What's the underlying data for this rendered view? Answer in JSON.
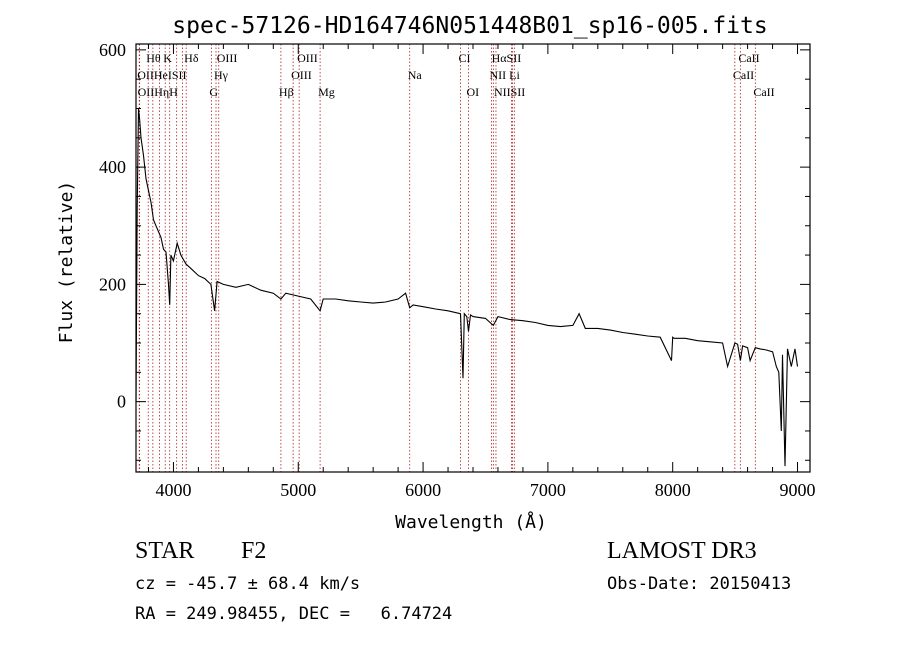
{
  "chart_data": {
    "type": "line",
    "title": "spec-57126-HD164746N051448B01_sp16-005.fits",
    "xlabel": "Wavelength (Å)",
    "ylabel": "Flux (relative)",
    "xlim": [
      3700,
      9100
    ],
    "ylim": [
      -120,
      610
    ],
    "x_ticks": [
      4000,
      5000,
      6000,
      7000,
      8000,
      9000
    ],
    "y_ticks": [
      0,
      200,
      400,
      600
    ],
    "series": [
      {
        "name": "flux",
        "x": [
          3700,
          3710,
          3720,
          3730,
          3740,
          3760,
          3780,
          3800,
          3820,
          3840,
          3860,
          3880,
          3900,
          3920,
          3940,
          3960,
          3970,
          3980,
          4000,
          4030,
          4060,
          4100,
          4150,
          4200,
          4250,
          4300,
          4330,
          4350,
          4400,
          4500,
          4600,
          4700,
          4800,
          4861,
          4900,
          5000,
          5100,
          5175,
          5200,
          5300,
          5400,
          5500,
          5600,
          5700,
          5800,
          5860,
          5893,
          5920,
          6000,
          6100,
          6200,
          6300,
          6320,
          6330,
          6350,
          6364,
          6380,
          6400,
          6500,
          6563,
          6600,
          6700,
          6800,
          6900,
          7000,
          7100,
          7200,
          7250,
          7300,
          7400,
          7500,
          7600,
          7700,
          7800,
          7900,
          7990,
          8000,
          8010,
          8100,
          8200,
          8300,
          8400,
          8440,
          8498,
          8520,
          8542,
          8560,
          8600,
          8620,
          8662,
          8700,
          8750,
          8800,
          8830,
          8850,
          8870,
          8880,
          8900,
          8920,
          8950,
          8980,
          9000
        ],
        "y": [
          0,
          330,
          500,
          480,
          450,
          420,
          380,
          360,
          340,
          310,
          300,
          290,
          280,
          260,
          255,
          200,
          165,
          250,
          240,
          270,
          250,
          235,
          225,
          215,
          210,
          200,
          155,
          205,
          200,
          195,
          200,
          190,
          185,
          175,
          185,
          180,
          175,
          155,
          175,
          175,
          172,
          170,
          168,
          170,
          175,
          185,
          160,
          165,
          162,
          158,
          155,
          150,
          40,
          150,
          145,
          120,
          148,
          145,
          142,
          130,
          145,
          140,
          138,
          135,
          130,
          128,
          130,
          150,
          125,
          125,
          122,
          118,
          115,
          112,
          110,
          70,
          110,
          108,
          108,
          104,
          102,
          100,
          60,
          100,
          98,
          70,
          95,
          92,
          70,
          92,
          90,
          88,
          85,
          60,
          50,
          -50,
          80,
          -110,
          90,
          60,
          90,
          60
        ]
      }
    ],
    "line_groups": [
      {
        "row": 0,
        "labels": [
          {
            "text": "Hθ",
            "x": 3798
          },
          {
            "text": "K",
            "x": 3934
          },
          {
            "text": "Hδ",
            "x": 4102
          },
          {
            "text": "OIII",
            "x": 4363
          },
          {
            "text": "OIII",
            "x": 5007
          },
          {
            "text": "CI",
            "x": 6300
          },
          {
            "text": "HαSII",
            "x": 6565
          },
          {
            "text": "CaII",
            "x": 8542
          }
        ]
      },
      {
        "row": 1,
        "labels": [
          {
            "text": "OIIHeISII",
            "x": 3726
          },
          {
            "text": "Hγ",
            "x": 4341
          },
          {
            "text": "OIII",
            "x": 4959
          },
          {
            "text": "Na",
            "x": 5893
          },
          {
            "text": "NII Li",
            "x": 6548
          },
          {
            "text": "CaII",
            "x": 8498
          }
        ]
      },
      {
        "row": 2,
        "labels": [
          {
            "text": "OIIHηH",
            "x": 3729
          },
          {
            "text": "G",
            "x": 4304
          },
          {
            "text": "Hβ",
            "x": 4861
          },
          {
            "text": "Mg",
            "x": 5175
          },
          {
            "text": "OI",
            "x": 6364
          },
          {
            "text": "NIISII",
            "x": 6584
          },
          {
            "text": "CaII",
            "x": 8662
          }
        ]
      }
    ],
    "line_positions": [
      3726,
      3729,
      3798,
      3835,
      3889,
      3934,
      3970,
      4026,
      4072,
      4102,
      4304,
      4341,
      4363,
      4861,
      4959,
      5007,
      5175,
      5893,
      6300,
      6364,
      6548,
      6563,
      6584,
      6708,
      6717,
      6731,
      8498,
      8542,
      8662
    ]
  },
  "info": {
    "class": "STAR",
    "subclass": "F2",
    "survey": "LAMOST DR3",
    "cz": "cz = -45.7 ± 68.4 km/s",
    "obsdate": "Obs-Date: 20150413",
    "radec": "RA = 249.98455, DEC =   6.74724"
  },
  "colors": {
    "line_marker": "#b02020",
    "spectrum": "#000000",
    "axis": "#000000"
  }
}
